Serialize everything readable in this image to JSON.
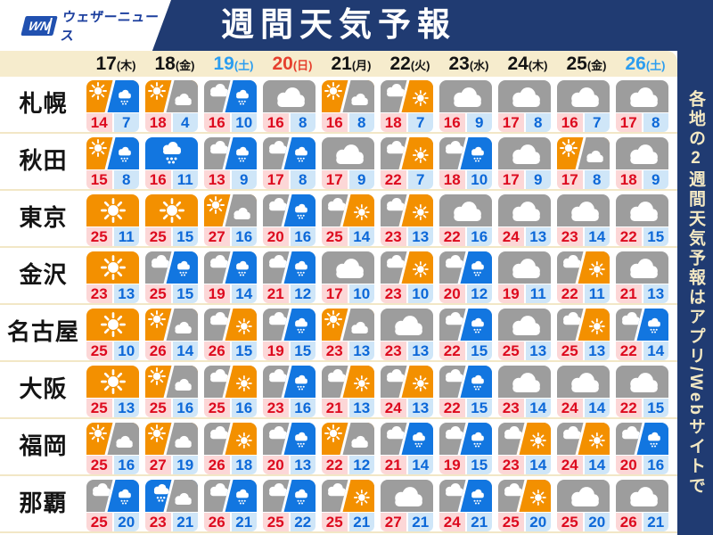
{
  "header": {
    "logo_wn": "WN",
    "logo_brand": "ウェザーニュース",
    "title": "週間天気予報"
  },
  "sidebar": {
    "part1": "各地の",
    "digit": "2",
    "part2": "週間天気予報はアプリ",
    "latin": "/Web",
    "part3": "サイトで"
  },
  "colors": {
    "navy": "#203b72",
    "cream": "#f6eccd",
    "separator": "#f2e7c6",
    "icon_orange": "#f39000",
    "icon_gray": "#9d9d9d",
    "icon_rain_blue": "#1276e0",
    "high_bg": "#fcd7d7",
    "high_text": "#dd0a1e",
    "low_bg": "#cfe6f8",
    "low_text": "#0c68d8",
    "saturday_blue": "#2b9df0",
    "sunday_red": "#e6402e"
  },
  "chart_data": {
    "type": "table",
    "title": "週間天気予報",
    "columns": [
      {
        "day": "17",
        "week": "(木)",
        "kind": "wd"
      },
      {
        "day": "18",
        "week": "(金)",
        "kind": "wd"
      },
      {
        "day": "19",
        "week": "(土)",
        "kind": "sat"
      },
      {
        "day": "20",
        "week": "(日)",
        "kind": "sun"
      },
      {
        "day": "21",
        "week": "(月)",
        "kind": "wd"
      },
      {
        "day": "22",
        "week": "(火)",
        "kind": "wd"
      },
      {
        "day": "23",
        "week": "(水)",
        "kind": "wd"
      },
      {
        "day": "24",
        "week": "(木)",
        "kind": "wd"
      },
      {
        "day": "25",
        "week": "(金)",
        "kind": "wd"
      },
      {
        "day": "26",
        "week": "(土)",
        "kind": "sat"
      }
    ],
    "rows": [
      {
        "city": "札幌",
        "cells": [
          {
            "icon": "sun_rain",
            "hi": 14,
            "lo": 7
          },
          {
            "icon": "sun_cloud",
            "hi": 18,
            "lo": 4
          },
          {
            "icon": "cloud_rain",
            "hi": 16,
            "lo": 10
          },
          {
            "icon": "cloud",
            "hi": 16,
            "lo": 8
          },
          {
            "icon": "sun_cloud",
            "hi": 16,
            "lo": 8
          },
          {
            "icon": "cloud_sun",
            "hi": 18,
            "lo": 7
          },
          {
            "icon": "cloud",
            "hi": 16,
            "lo": 9
          },
          {
            "icon": "cloud",
            "hi": 17,
            "lo": 8
          },
          {
            "icon": "cloud",
            "hi": 16,
            "lo": 7
          },
          {
            "icon": "cloud",
            "hi": 17,
            "lo": 8
          }
        ]
      },
      {
        "city": "秋田",
        "cells": [
          {
            "icon": "sun_rain",
            "hi": 15,
            "lo": 8
          },
          {
            "icon": "rain",
            "hi": 16,
            "lo": 11
          },
          {
            "icon": "cloud_rain",
            "hi": 13,
            "lo": 9
          },
          {
            "icon": "cloud_rain",
            "hi": 17,
            "lo": 8
          },
          {
            "icon": "cloud",
            "hi": 17,
            "lo": 9
          },
          {
            "icon": "cloud_sun",
            "hi": 22,
            "lo": 7
          },
          {
            "icon": "cloud_rain",
            "hi": 18,
            "lo": 10
          },
          {
            "icon": "cloud",
            "hi": 17,
            "lo": 9
          },
          {
            "icon": "sun_cloud",
            "hi": 17,
            "lo": 8
          },
          {
            "icon": "cloud",
            "hi": 18,
            "lo": 9
          }
        ]
      },
      {
        "city": "東京",
        "cells": [
          {
            "icon": "sun",
            "hi": 25,
            "lo": 11
          },
          {
            "icon": "sun",
            "hi": 25,
            "lo": 15
          },
          {
            "icon": "sun_cloud",
            "hi": 27,
            "lo": 16
          },
          {
            "icon": "cloud_rain",
            "hi": 20,
            "lo": 16
          },
          {
            "icon": "cloud_sun",
            "hi": 25,
            "lo": 14
          },
          {
            "icon": "cloud_sun",
            "hi": 23,
            "lo": 13
          },
          {
            "icon": "cloud",
            "hi": 22,
            "lo": 16
          },
          {
            "icon": "cloud",
            "hi": 24,
            "lo": 13
          },
          {
            "icon": "cloud",
            "hi": 23,
            "lo": 14
          },
          {
            "icon": "cloud",
            "hi": 22,
            "lo": 15
          }
        ]
      },
      {
        "city": "金沢",
        "cells": [
          {
            "icon": "sun",
            "hi": 23,
            "lo": 13
          },
          {
            "icon": "cloud_rain",
            "hi": 25,
            "lo": 15
          },
          {
            "icon": "cloud_rain",
            "hi": 19,
            "lo": 14
          },
          {
            "icon": "cloud_rain",
            "hi": 21,
            "lo": 12
          },
          {
            "icon": "cloud",
            "hi": 17,
            "lo": 10
          },
          {
            "icon": "cloud_sun",
            "hi": 23,
            "lo": 10
          },
          {
            "icon": "cloud_rain",
            "hi": 20,
            "lo": 12
          },
          {
            "icon": "cloud",
            "hi": 19,
            "lo": 11
          },
          {
            "icon": "cloud_sun",
            "hi": 22,
            "lo": 11
          },
          {
            "icon": "cloud",
            "hi": 21,
            "lo": 13
          }
        ]
      },
      {
        "city": "名古屋",
        "cells": [
          {
            "icon": "sun",
            "hi": 25,
            "lo": 10
          },
          {
            "icon": "sun_cloud",
            "hi": 26,
            "lo": 14
          },
          {
            "icon": "cloud_sun",
            "hi": 26,
            "lo": 15
          },
          {
            "icon": "cloud_rain",
            "hi": 19,
            "lo": 15
          },
          {
            "icon": "sun_cloud",
            "hi": 23,
            "lo": 13
          },
          {
            "icon": "cloud",
            "hi": 23,
            "lo": 13
          },
          {
            "icon": "cloud_rain",
            "hi": 22,
            "lo": 15
          },
          {
            "icon": "cloud",
            "hi": 25,
            "lo": 13
          },
          {
            "icon": "cloud_sun",
            "hi": 25,
            "lo": 13
          },
          {
            "icon": "cloud_rain",
            "hi": 22,
            "lo": 14
          }
        ]
      },
      {
        "city": "大阪",
        "cells": [
          {
            "icon": "sun",
            "hi": 25,
            "lo": 13
          },
          {
            "icon": "sun_cloud",
            "hi": 25,
            "lo": 16
          },
          {
            "icon": "cloud_sun",
            "hi": 25,
            "lo": 16
          },
          {
            "icon": "cloud_rain",
            "hi": 23,
            "lo": 16
          },
          {
            "icon": "cloud_sun",
            "hi": 21,
            "lo": 13
          },
          {
            "icon": "cloud_sun",
            "hi": 24,
            "lo": 13
          },
          {
            "icon": "cloud_rain",
            "hi": 22,
            "lo": 15
          },
          {
            "icon": "cloud",
            "hi": 23,
            "lo": 14
          },
          {
            "icon": "cloud",
            "hi": 24,
            "lo": 14
          },
          {
            "icon": "cloud",
            "hi": 22,
            "lo": 15
          }
        ]
      },
      {
        "city": "福岡",
        "cells": [
          {
            "icon": "sun_cloud",
            "hi": 25,
            "lo": 16
          },
          {
            "icon": "sun_cloud",
            "hi": 27,
            "lo": 19
          },
          {
            "icon": "cloud_sun",
            "hi": 26,
            "lo": 18
          },
          {
            "icon": "cloud_rain",
            "hi": 20,
            "lo": 13
          },
          {
            "icon": "sun_cloud",
            "hi": 22,
            "lo": 12
          },
          {
            "icon": "cloud_rain",
            "hi": 21,
            "lo": 14
          },
          {
            "icon": "cloud_rain",
            "hi": 19,
            "lo": 15
          },
          {
            "icon": "cloud_sun",
            "hi": 23,
            "lo": 14
          },
          {
            "icon": "cloud_sun",
            "hi": 24,
            "lo": 14
          },
          {
            "icon": "cloud_rain",
            "hi": 20,
            "lo": 16
          }
        ]
      },
      {
        "city": "那覇",
        "cells": [
          {
            "icon": "cloud_rain",
            "hi": 25,
            "lo": 20
          },
          {
            "icon": "rain_cloud",
            "hi": 23,
            "lo": 21
          },
          {
            "icon": "cloud_rain",
            "hi": 26,
            "lo": 21
          },
          {
            "icon": "cloud_rain",
            "hi": 25,
            "lo": 22
          },
          {
            "icon": "cloud_sun",
            "hi": 25,
            "lo": 21
          },
          {
            "icon": "cloud",
            "hi": 27,
            "lo": 21
          },
          {
            "icon": "cloud_rain",
            "hi": 24,
            "lo": 21
          },
          {
            "icon": "cloud_sun",
            "hi": 25,
            "lo": 20
          },
          {
            "icon": "cloud",
            "hi": 25,
            "lo": 20
          },
          {
            "icon": "cloud",
            "hi": 26,
            "lo": 21
          }
        ]
      }
    ]
  }
}
